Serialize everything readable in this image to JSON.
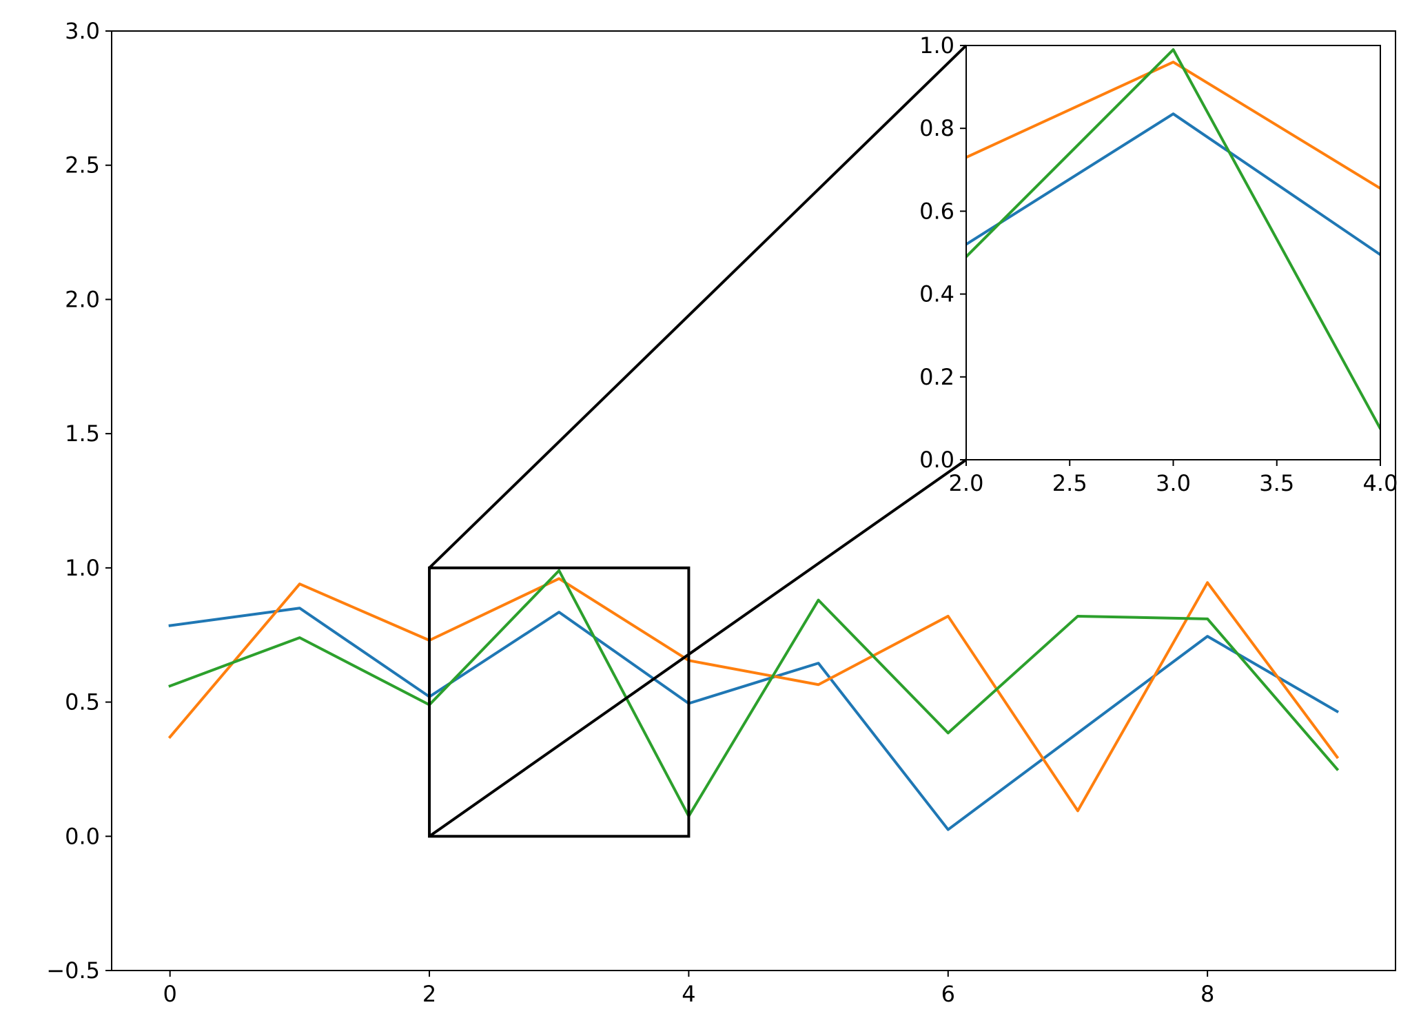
{
  "chart_data": {
    "type": "line",
    "title": "",
    "xlabel": "",
    "ylabel": "",
    "grid": false,
    "colors": [
      "#1f77b4",
      "#ff7f0e",
      "#2ca02c"
    ],
    "main": {
      "xlim": [
        -0.45,
        9.45
      ],
      "ylim": [
        -0.5,
        3.0
      ],
      "xticks": [
        0,
        2,
        4,
        6,
        8
      ],
      "xtick_labels": [
        "0",
        "2",
        "4",
        "6",
        "8"
      ],
      "yticks": [
        -0.5,
        0.0,
        0.5,
        1.0,
        1.5,
        2.0,
        2.5,
        3.0
      ],
      "ytick_labels": [
        "−0.5",
        "0.0",
        "0.5",
        "1.0",
        "1.5",
        "2.0",
        "2.5",
        "3.0"
      ]
    },
    "x": [
      0,
      1,
      2,
      3,
      4,
      5,
      6,
      7,
      8,
      9
    ],
    "series": [
      {
        "color": "#1f77b4",
        "values": [
          0.785,
          0.85,
          0.52,
          0.835,
          0.495,
          0.645,
          0.025,
          0.385,
          0.745,
          0.465
        ]
      },
      {
        "color": "#ff7f0e",
        "values": [
          0.37,
          0.94,
          0.73,
          0.96,
          0.655,
          0.565,
          0.82,
          0.095,
          0.945,
          0.295
        ]
      },
      {
        "color": "#2ca02c",
        "values": [
          0.56,
          0.74,
          0.49,
          0.99,
          0.075,
          0.88,
          0.385,
          0.82,
          0.81,
          0.25
        ]
      }
    ],
    "zoom_region": {
      "xlim": [
        2.0,
        4.0
      ],
      "ylim": [
        0.0,
        1.0
      ]
    },
    "inset": {
      "xlim": [
        2.0,
        4.0
      ],
      "ylim": [
        0.0,
        1.0
      ],
      "xticks": [
        2.0,
        2.5,
        3.0,
        3.5,
        4.0
      ],
      "xtick_labels": [
        "2.0",
        "2.5",
        "3.0",
        "3.5",
        "4.0"
      ],
      "yticks": [
        0.0,
        0.2,
        0.4,
        0.6,
        0.8,
        1.0
      ],
      "ytick_labels": [
        "0.0",
        "0.2",
        "0.4",
        "0.6",
        "0.8",
        "1.0"
      ]
    }
  }
}
